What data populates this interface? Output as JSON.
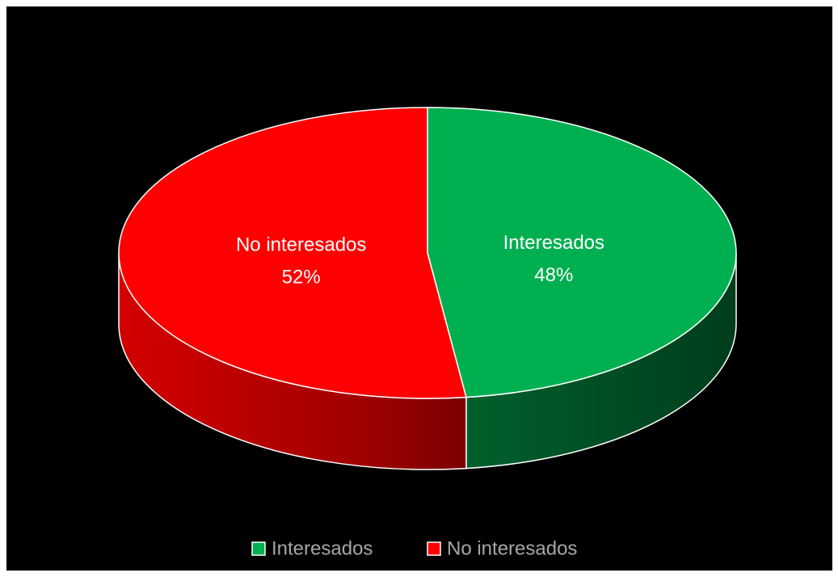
{
  "chart_data": {
    "type": "pie",
    "categories": [
      "Interesados",
      "No interesados"
    ],
    "values": [
      48,
      52
    ],
    "value_labels": [
      "48%",
      "52%"
    ],
    "colors": [
      "#00b050",
      "#ff0000"
    ],
    "legend": "bottom"
  }
}
